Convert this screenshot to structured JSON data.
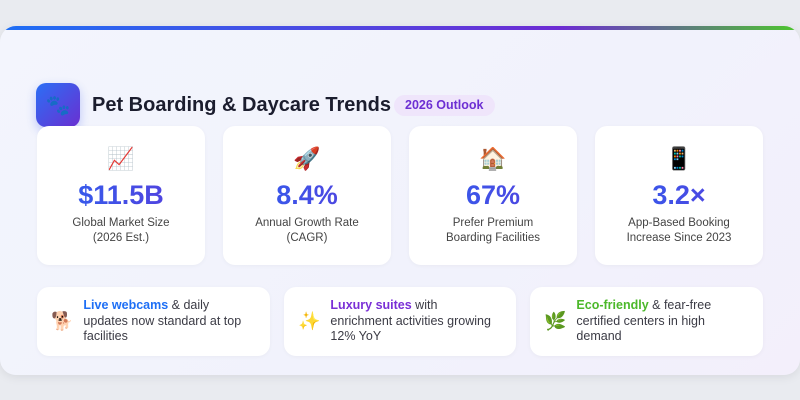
{
  "header": {
    "logo_icon": "🐾",
    "title": "Pet Boarding & Daycare Trends",
    "badge": "2026 Outlook"
  },
  "stats": [
    {
      "icon": "📈",
      "value": "$11.5B",
      "label": "Global Market Size (2026 Est.)"
    },
    {
      "icon": "🚀",
      "value": "8.4%",
      "label": "Annual Growth Rate (CAGR)"
    },
    {
      "icon": "🏠",
      "value": "67%",
      "label": "Prefer Premium Boarding Facilities"
    },
    {
      "icon": "📱",
      "value": "3.2×",
      "label": "App-Based Booking Increase Since 2023"
    }
  ],
  "features": [
    {
      "icon": "🐕",
      "highlight": "Live webcams",
      "text": " & daily updates now standard at top facilities",
      "color": "#1e6ff5"
    },
    {
      "icon": "✨",
      "highlight": "Luxury suites",
      "text": " with enrichment activities growing 12% YoY",
      "color": "#7a2fd6"
    },
    {
      "icon": "🌿",
      "highlight": "Eco-friendly",
      "text": " & fear-free certified centers in high demand",
      "color": "#4cb82a"
    }
  ]
}
